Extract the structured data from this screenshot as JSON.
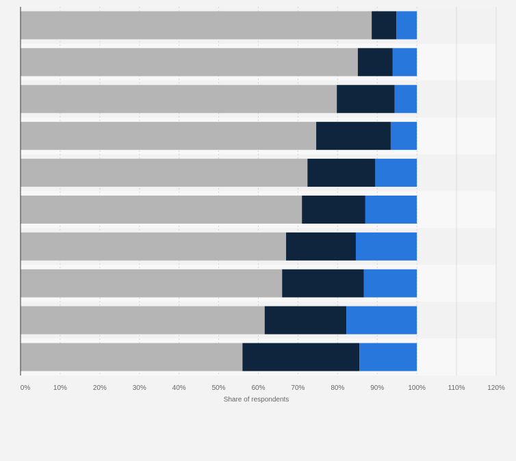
{
  "chart_data": {
    "type": "bar",
    "orientation": "horizontal",
    "stacked": true,
    "title": "",
    "xlabel": "Share of respondents",
    "ylabel": "",
    "xlim": [
      0,
      120
    ],
    "x_ticks": [
      "0%",
      "10%",
      "20%",
      "30%",
      "40%",
      "50%",
      "60%",
      "70%",
      "80%",
      "90%",
      "100%",
      "110%",
      "120%"
    ],
    "grid": true,
    "legend": "none",
    "categories": [
      "",
      "",
      "",
      "",
      "",
      "",
      "",
      "",
      "",
      ""
    ],
    "series": [
      {
        "color": "#b5b5b5",
        "values": [
          88.6,
          85.1,
          79.8,
          74.6,
          72.4,
          71.0,
          67.0,
          66.0,
          61.6,
          56.0
        ]
      },
      {
        "color": "#0f253d",
        "values": [
          6.2,
          8.8,
          14.6,
          18.8,
          17.1,
          16.0,
          17.6,
          20.6,
          20.6,
          29.5
        ]
      },
      {
        "color": "#2877dd",
        "values": [
          5.2,
          6.1,
          5.6,
          6.6,
          10.5,
          13.0,
          15.4,
          13.4,
          17.8,
          14.5
        ]
      }
    ]
  }
}
